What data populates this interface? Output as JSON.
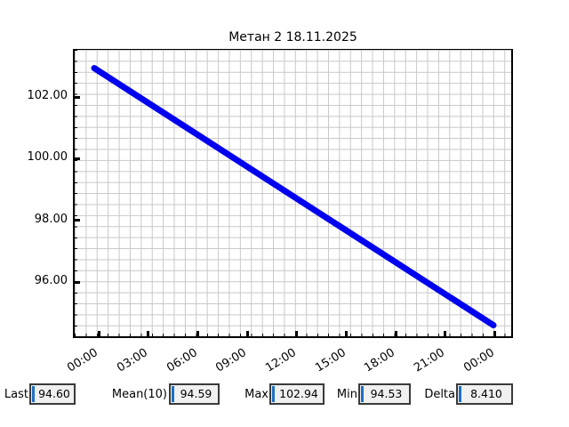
{
  "chart_data": {
    "type": "line",
    "title": "Метан 2 18.11.2025",
    "xlabel": "",
    "ylabel": "",
    "grid": true,
    "legend": "none",
    "x_tick_labels": [
      "00:00",
      "03:00",
      "06:00",
      "09:00",
      "12:00",
      "15:00",
      "18:00",
      "21:00",
      "00:00"
    ],
    "x_hours_range": [
      0,
      24
    ],
    "y_ticks": [
      {
        "value": 102,
        "label": "102.00"
      },
      {
        "value": 100,
        "label": "100.00"
      },
      {
        "value": 98,
        "label": "98.00"
      },
      {
        "value": 96,
        "label": "96.00"
      }
    ],
    "ylim": [
      94.1,
      103.5
    ],
    "series": [
      {
        "name": "Метан 2",
        "color": "#0000ee",
        "x_hours": [
          0,
          24
        ],
        "values": [
          102.94,
          94.6
        ]
      }
    ]
  },
  "stats": [
    {
      "label": "Last",
      "value": "94.60"
    },
    {
      "label": "Mean(10)",
      "value": "94.59"
    },
    {
      "label": "Max",
      "value": "102.94"
    },
    {
      "label": "Min",
      "value": "94.53"
    },
    {
      "label": "Delta",
      "value": "8.410"
    }
  ],
  "colors": {
    "line": "#0000ee",
    "grid": "#c8c8c8",
    "axis": "#000000",
    "stat_box_bg": "#f0f0f0",
    "stat_box_border": "#3a3a3a",
    "stat_cursor": "#1d70c2"
  }
}
